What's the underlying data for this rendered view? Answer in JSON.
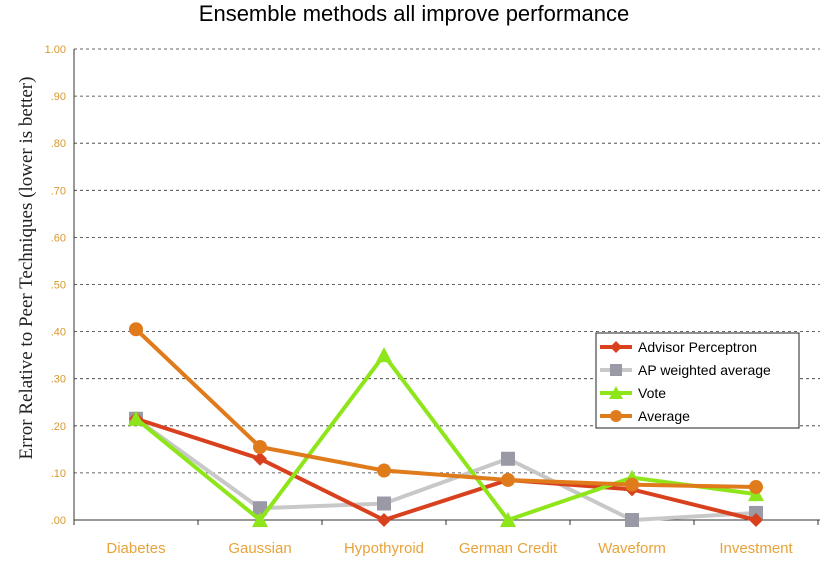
{
  "chart_data": {
    "type": "line",
    "title": "Ensemble methods all improve performance",
    "xlabel": "",
    "ylabel": "Error Relative to Peer Techniques (lower is better)",
    "categories": [
      "Diabetes",
      "Gaussian",
      "Hypothyroid",
      "German Credit",
      "Waveform",
      "Investment"
    ],
    "ylim": [
      0,
      1
    ],
    "yticks": [
      0,
      0.1,
      0.2,
      0.3,
      0.4,
      0.5,
      0.6,
      0.7,
      0.8,
      0.9,
      1.0
    ],
    "ytick_labels": [
      ".00",
      ".10",
      ".20",
      ".30",
      ".40",
      ".50",
      ".60",
      ".70",
      ".80",
      ".90",
      "1.00"
    ],
    "grid": true,
    "legend_position": "right",
    "series": [
      {
        "name": "Advisor Perceptron",
        "color": "#d9411e",
        "marker": "diamond",
        "values": [
          0.215,
          0.13,
          0.0,
          0.085,
          0.065,
          0.0
        ]
      },
      {
        "name": "AP weighted average",
        "color": "#c8c8c8",
        "marker": "square",
        "values": [
          0.215,
          0.025,
          0.035,
          0.13,
          0.0,
          0.015
        ]
      },
      {
        "name": "Vote",
        "color": "#8ee61a",
        "marker": "triangle",
        "values": [
          0.215,
          0.0,
          0.35,
          0.0,
          0.09,
          0.055
        ]
      },
      {
        "name": "Average",
        "color": "#e07b1c",
        "marker": "circle",
        "values": [
          0.405,
          0.155,
          0.105,
          0.085,
          0.075,
          0.07
        ]
      }
    ]
  }
}
